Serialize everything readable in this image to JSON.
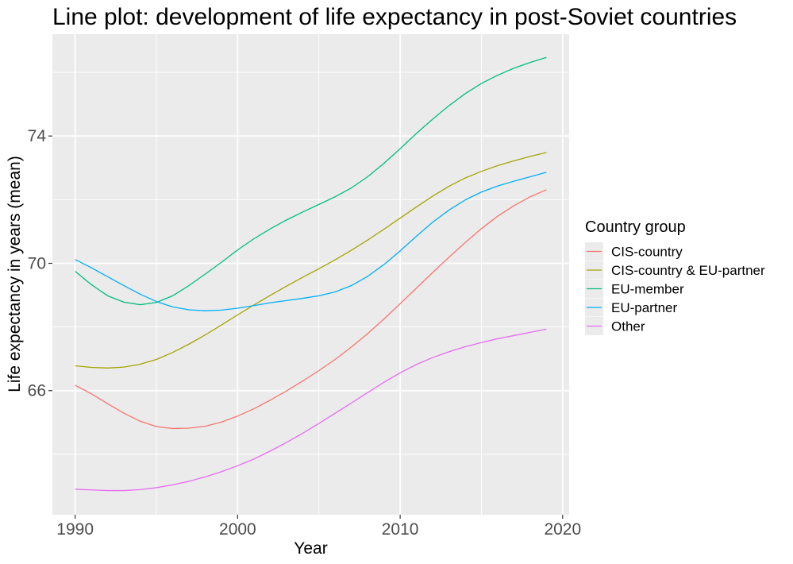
{
  "chart_data": {
    "type": "line",
    "title": "Line plot: development of life expectancy in post-Soviet countries",
    "xlabel": "Year",
    "ylabel": "Life expectancy in years (mean)",
    "xlim": [
      1988.6,
      2020.4
    ],
    "ylim": [
      62.1,
      77.2
    ],
    "x_ticks": [
      1990,
      2000,
      2010,
      2020
    ],
    "y_ticks": [
      66,
      70,
      74
    ],
    "x_tick_labels": [
      "1990",
      "2000",
      "2010",
      "2020"
    ],
    "y_tick_labels": [
      "66",
      "70",
      "74"
    ],
    "grid": true,
    "legend_title": "Country group",
    "legend_position": "right",
    "x": [
      1990,
      1991,
      1992,
      1993,
      1994,
      1995,
      1996,
      1997,
      1998,
      1999,
      2000,
      2001,
      2002,
      2003,
      2004,
      2005,
      2006,
      2007,
      2008,
      2009,
      2010,
      2011,
      2012,
      2013,
      2014,
      2015,
      2016,
      2017,
      2018,
      2019
    ],
    "series": [
      {
        "name": "CIS-country",
        "color": "#F8766D",
        "values": [
          66.17,
          65.9,
          65.59,
          65.29,
          65.04,
          64.87,
          64.81,
          64.82,
          64.88,
          65.01,
          65.2,
          65.43,
          65.7,
          65.99,
          66.3,
          66.63,
          66.98,
          67.37,
          67.79,
          68.25,
          68.73,
          69.22,
          69.71,
          70.19,
          70.65,
          71.09,
          71.48,
          71.81,
          72.09,
          72.31
        ]
      },
      {
        "name": "CIS-country & EU-partner",
        "color": "#A3A500",
        "values": [
          66.78,
          66.73,
          66.71,
          66.74,
          66.83,
          66.98,
          67.2,
          67.46,
          67.75,
          68.06,
          68.38,
          68.69,
          68.99,
          69.28,
          69.56,
          69.83,
          70.11,
          70.41,
          70.73,
          71.07,
          71.42,
          71.77,
          72.11,
          72.42,
          72.68,
          72.89,
          73.07,
          73.22,
          73.36,
          73.48
        ]
      },
      {
        "name": "EU-member",
        "color": "#00BF7D",
        "values": [
          69.75,
          69.33,
          68.98,
          68.78,
          68.7,
          68.77,
          68.98,
          69.3,
          69.66,
          70.03,
          70.42,
          70.77,
          71.08,
          71.36,
          71.61,
          71.85,
          72.09,
          72.37,
          72.72,
          73.14,
          73.6,
          74.08,
          74.53,
          74.95,
          75.33,
          75.65,
          75.91,
          76.13,
          76.31,
          76.47
        ]
      },
      {
        "name": "EU-partner",
        "color": "#00B0F6",
        "values": [
          70.12,
          69.86,
          69.58,
          69.3,
          69.03,
          68.8,
          68.63,
          68.54,
          68.51,
          68.53,
          68.59,
          68.67,
          68.76,
          68.83,
          68.9,
          68.98,
          69.1,
          69.3,
          69.59,
          69.96,
          70.39,
          70.85,
          71.29,
          71.67,
          71.99,
          72.24,
          72.43,
          72.58,
          72.72,
          72.86
        ]
      },
      {
        "name": "Other",
        "color": "#E76BF3",
        "values": [
          62.9,
          62.88,
          62.86,
          62.86,
          62.89,
          62.95,
          63.04,
          63.15,
          63.29,
          63.45,
          63.64,
          63.85,
          64.1,
          64.37,
          64.66,
          64.97,
          65.29,
          65.61,
          65.94,
          66.26,
          66.56,
          66.82,
          67.04,
          67.22,
          67.38,
          67.51,
          67.63,
          67.73,
          67.83,
          67.93
        ]
      }
    ]
  }
}
